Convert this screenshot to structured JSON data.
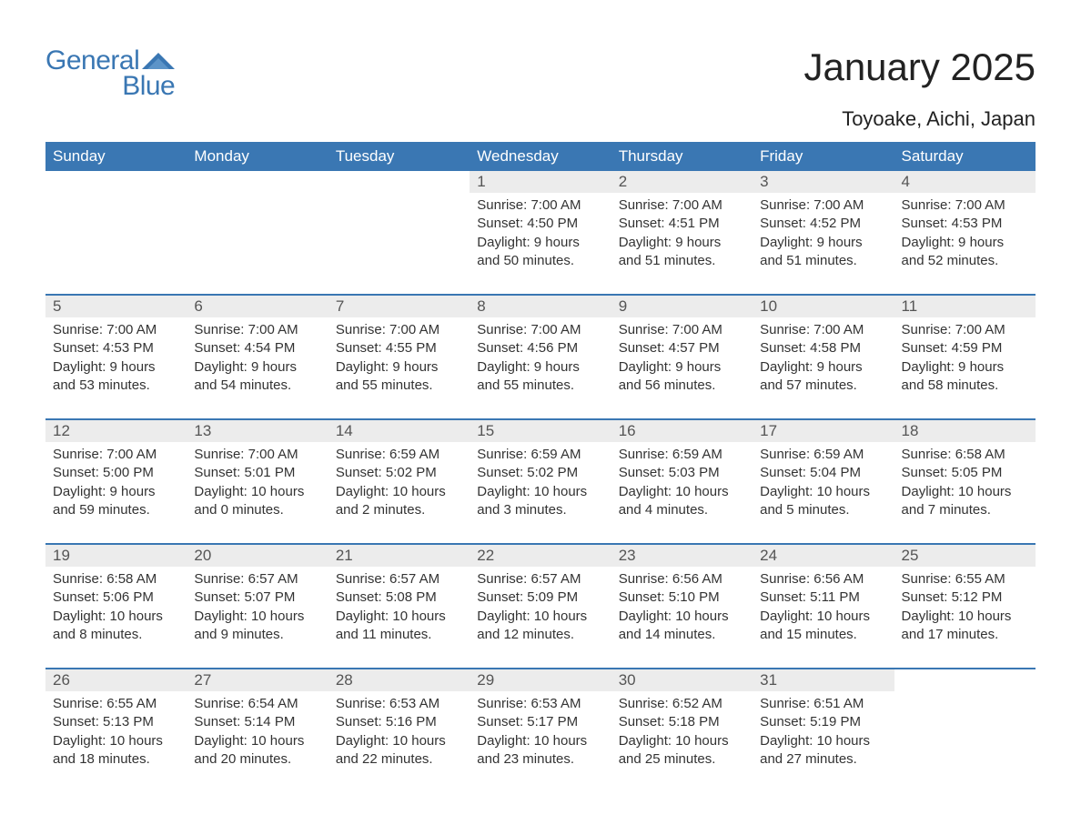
{
  "logo": {
    "word1": "General",
    "word2": "Blue",
    "brand_color": "#3a77b3"
  },
  "title": "January 2025",
  "subtitle": "Toyoake, Aichi, Japan",
  "colors": {
    "header_bg": "#3a77b3",
    "header_text": "#ffffff",
    "daynum_bg": "#ececec",
    "text": "#333333",
    "page_bg": "#ffffff"
  },
  "day_headers": [
    "Sunday",
    "Monday",
    "Tuesday",
    "Wednesday",
    "Thursday",
    "Friday",
    "Saturday"
  ],
  "weeks": [
    [
      null,
      null,
      null,
      {
        "n": "1",
        "sr": "Sunrise: 7:00 AM",
        "ss": "Sunset: 4:50 PM",
        "d1": "Daylight: 9 hours",
        "d2": "and 50 minutes."
      },
      {
        "n": "2",
        "sr": "Sunrise: 7:00 AM",
        "ss": "Sunset: 4:51 PM",
        "d1": "Daylight: 9 hours",
        "d2": "and 51 minutes."
      },
      {
        "n": "3",
        "sr": "Sunrise: 7:00 AM",
        "ss": "Sunset: 4:52 PM",
        "d1": "Daylight: 9 hours",
        "d2": "and 51 minutes."
      },
      {
        "n": "4",
        "sr": "Sunrise: 7:00 AM",
        "ss": "Sunset: 4:53 PM",
        "d1": "Daylight: 9 hours",
        "d2": "and 52 minutes."
      }
    ],
    [
      {
        "n": "5",
        "sr": "Sunrise: 7:00 AM",
        "ss": "Sunset: 4:53 PM",
        "d1": "Daylight: 9 hours",
        "d2": "and 53 minutes."
      },
      {
        "n": "6",
        "sr": "Sunrise: 7:00 AM",
        "ss": "Sunset: 4:54 PM",
        "d1": "Daylight: 9 hours",
        "d2": "and 54 minutes."
      },
      {
        "n": "7",
        "sr": "Sunrise: 7:00 AM",
        "ss": "Sunset: 4:55 PM",
        "d1": "Daylight: 9 hours",
        "d2": "and 55 minutes."
      },
      {
        "n": "8",
        "sr": "Sunrise: 7:00 AM",
        "ss": "Sunset: 4:56 PM",
        "d1": "Daylight: 9 hours",
        "d2": "and 55 minutes."
      },
      {
        "n": "9",
        "sr": "Sunrise: 7:00 AM",
        "ss": "Sunset: 4:57 PM",
        "d1": "Daylight: 9 hours",
        "d2": "and 56 minutes."
      },
      {
        "n": "10",
        "sr": "Sunrise: 7:00 AM",
        "ss": "Sunset: 4:58 PM",
        "d1": "Daylight: 9 hours",
        "d2": "and 57 minutes."
      },
      {
        "n": "11",
        "sr": "Sunrise: 7:00 AM",
        "ss": "Sunset: 4:59 PM",
        "d1": "Daylight: 9 hours",
        "d2": "and 58 minutes."
      }
    ],
    [
      {
        "n": "12",
        "sr": "Sunrise: 7:00 AM",
        "ss": "Sunset: 5:00 PM",
        "d1": "Daylight: 9 hours",
        "d2": "and 59 minutes."
      },
      {
        "n": "13",
        "sr": "Sunrise: 7:00 AM",
        "ss": "Sunset: 5:01 PM",
        "d1": "Daylight: 10 hours",
        "d2": "and 0 minutes."
      },
      {
        "n": "14",
        "sr": "Sunrise: 6:59 AM",
        "ss": "Sunset: 5:02 PM",
        "d1": "Daylight: 10 hours",
        "d2": "and 2 minutes."
      },
      {
        "n": "15",
        "sr": "Sunrise: 6:59 AM",
        "ss": "Sunset: 5:02 PM",
        "d1": "Daylight: 10 hours",
        "d2": "and 3 minutes."
      },
      {
        "n": "16",
        "sr": "Sunrise: 6:59 AM",
        "ss": "Sunset: 5:03 PM",
        "d1": "Daylight: 10 hours",
        "d2": "and 4 minutes."
      },
      {
        "n": "17",
        "sr": "Sunrise: 6:59 AM",
        "ss": "Sunset: 5:04 PM",
        "d1": "Daylight: 10 hours",
        "d2": "and 5 minutes."
      },
      {
        "n": "18",
        "sr": "Sunrise: 6:58 AM",
        "ss": "Sunset: 5:05 PM",
        "d1": "Daylight: 10 hours",
        "d2": "and 7 minutes."
      }
    ],
    [
      {
        "n": "19",
        "sr": "Sunrise: 6:58 AM",
        "ss": "Sunset: 5:06 PM",
        "d1": "Daylight: 10 hours",
        "d2": "and 8 minutes."
      },
      {
        "n": "20",
        "sr": "Sunrise: 6:57 AM",
        "ss": "Sunset: 5:07 PM",
        "d1": "Daylight: 10 hours",
        "d2": "and 9 minutes."
      },
      {
        "n": "21",
        "sr": "Sunrise: 6:57 AM",
        "ss": "Sunset: 5:08 PM",
        "d1": "Daylight: 10 hours",
        "d2": "and 11 minutes."
      },
      {
        "n": "22",
        "sr": "Sunrise: 6:57 AM",
        "ss": "Sunset: 5:09 PM",
        "d1": "Daylight: 10 hours",
        "d2": "and 12 minutes."
      },
      {
        "n": "23",
        "sr": "Sunrise: 6:56 AM",
        "ss": "Sunset: 5:10 PM",
        "d1": "Daylight: 10 hours",
        "d2": "and 14 minutes."
      },
      {
        "n": "24",
        "sr": "Sunrise: 6:56 AM",
        "ss": "Sunset: 5:11 PM",
        "d1": "Daylight: 10 hours",
        "d2": "and 15 minutes."
      },
      {
        "n": "25",
        "sr": "Sunrise: 6:55 AM",
        "ss": "Sunset: 5:12 PM",
        "d1": "Daylight: 10 hours",
        "d2": "and 17 minutes."
      }
    ],
    [
      {
        "n": "26",
        "sr": "Sunrise: 6:55 AM",
        "ss": "Sunset: 5:13 PM",
        "d1": "Daylight: 10 hours",
        "d2": "and 18 minutes."
      },
      {
        "n": "27",
        "sr": "Sunrise: 6:54 AM",
        "ss": "Sunset: 5:14 PM",
        "d1": "Daylight: 10 hours",
        "d2": "and 20 minutes."
      },
      {
        "n": "28",
        "sr": "Sunrise: 6:53 AM",
        "ss": "Sunset: 5:16 PM",
        "d1": "Daylight: 10 hours",
        "d2": "and 22 minutes."
      },
      {
        "n": "29",
        "sr": "Sunrise: 6:53 AM",
        "ss": "Sunset: 5:17 PM",
        "d1": "Daylight: 10 hours",
        "d2": "and 23 minutes."
      },
      {
        "n": "30",
        "sr": "Sunrise: 6:52 AM",
        "ss": "Sunset: 5:18 PM",
        "d1": "Daylight: 10 hours",
        "d2": "and 25 minutes."
      },
      {
        "n": "31",
        "sr": "Sunrise: 6:51 AM",
        "ss": "Sunset: 5:19 PM",
        "d1": "Daylight: 10 hours",
        "d2": "and 27 minutes."
      },
      null
    ]
  ]
}
